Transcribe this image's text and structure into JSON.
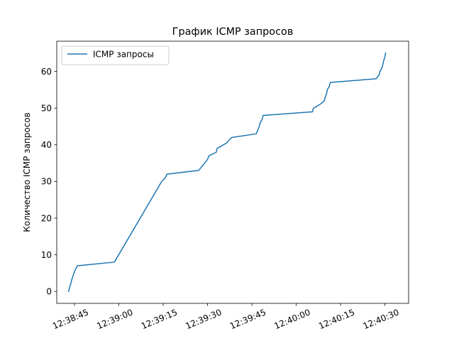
{
  "chart_data": {
    "type": "line",
    "title": "График ICMP запросов",
    "xlabel": "",
    "ylabel": "Количество ICMP запросов",
    "x_unit": "seconds",
    "xlim": [
      "12:38:39",
      "12:40:38"
    ],
    "ylim": [
      -3.25,
      68.25
    ],
    "x_ticks": [
      "12:38:45",
      "12:39:00",
      "12:39:15",
      "12:39:30",
      "12:39:45",
      "12:40:00",
      "12:40:15",
      "12:40:30"
    ],
    "y_ticks": [
      0,
      10,
      20,
      30,
      40,
      50,
      60
    ],
    "grid": false,
    "legend": {
      "position": "top-left"
    },
    "line_color": "#1f77b4",
    "series": [
      {
        "name": "ICMP запросы",
        "points": [
          [
            "12:38:43.0",
            0
          ],
          [
            "12:38:43.3",
            1
          ],
          [
            "12:38:43.7",
            2
          ],
          [
            "12:38:44.0",
            3
          ],
          [
            "12:38:44.4",
            4
          ],
          [
            "12:38:44.8",
            5
          ],
          [
            "12:38:45.3",
            6
          ],
          [
            "12:38:46.0",
            7
          ],
          [
            "12:38:58.5",
            8
          ],
          [
            "12:39:14.5",
            30
          ],
          [
            "12:39:15.7",
            31
          ],
          [
            "12:39:16.3",
            32
          ],
          [
            "12:39:27.0",
            33
          ],
          [
            "12:39:30.0",
            36
          ],
          [
            "12:39:30.5",
            37
          ],
          [
            "12:39:33.0",
            38
          ],
          [
            "12:39:33.2",
            39
          ],
          [
            "12:39:36.5",
            40.5
          ],
          [
            "12:39:37.5",
            41.5
          ],
          [
            "12:39:38.2",
            42
          ],
          [
            "12:39:46.5",
            43
          ],
          [
            "12:39:47.0",
            44
          ],
          [
            "12:39:47.5",
            45
          ],
          [
            "12:39:47.8",
            46
          ],
          [
            "12:39:48.5",
            47
          ],
          [
            "12:39:48.8",
            48
          ],
          [
            "12:40:05.5",
            49
          ],
          [
            "12:40:05.8",
            50
          ],
          [
            "12:40:08.0",
            51
          ],
          [
            "12:40:09.5",
            52
          ],
          [
            "12:40:09.8",
            53
          ],
          [
            "12:40:10.3",
            54
          ],
          [
            "12:40:10.5",
            55
          ],
          [
            "12:40:11.2",
            56
          ],
          [
            "12:40:11.5",
            57
          ],
          [
            "12:40:27.0",
            58
          ],
          [
            "12:40:28.0",
            59
          ],
          [
            "12:40:28.3",
            60
          ],
          [
            "12:40:29.0",
            61
          ],
          [
            "12:40:29.3",
            62
          ],
          [
            "12:40:29.6",
            63
          ],
          [
            "12:40:30.0",
            64
          ],
          [
            "12:40:30.2",
            65
          ]
        ]
      }
    ]
  }
}
